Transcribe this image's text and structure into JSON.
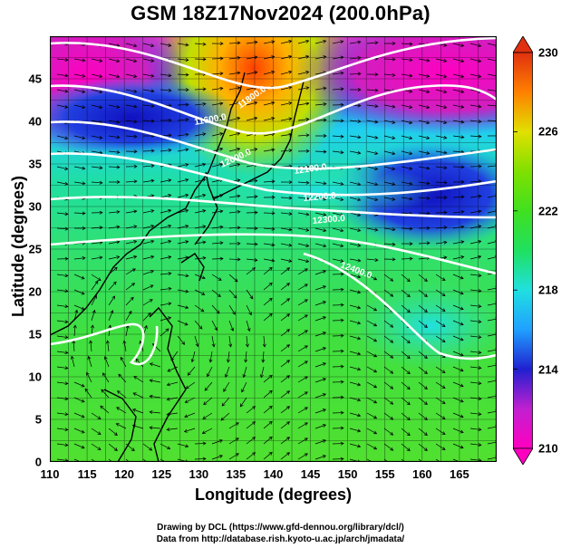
{
  "title": "GSM 18Z17Nov2024 (200.0hPa)",
  "x_axis": {
    "label": "Longitude (degrees)",
    "range": [
      110,
      170
    ],
    "ticks": [
      110,
      115,
      120,
      125,
      130,
      135,
      140,
      145,
      150,
      155,
      160,
      165
    ]
  },
  "y_axis": {
    "label": "Latitude  (degrees)",
    "range": [
      0,
      50
    ],
    "ticks": [
      0,
      5,
      10,
      15,
      20,
      25,
      30,
      35,
      40,
      45
    ]
  },
  "colorbar": {
    "range": [
      210,
      230
    ],
    "ticks": [
      210,
      214,
      218,
      222,
      226,
      230
    ],
    "colors": [
      "#ff00c0",
      "#c020d0",
      "#2020d0",
      "#20a0ff",
      "#20e0e0",
      "#20e060",
      "#40e020",
      "#80e000",
      "#e0e000",
      "#ff8000",
      "#e03010"
    ]
  },
  "contours": {
    "labels": [
      "11800.0",
      "11600.0",
      "12000.0",
      "12100.0",
      "12200.0",
      "12300.0",
      "12400.0"
    ]
  },
  "credits": {
    "line1": "Drawing by DCL (https://www.gfd-dennou.org/library/dcl/)",
    "line2": "Data from http://database.rish.kyoto-u.ac.jp/arch/jmadata/"
  }
}
